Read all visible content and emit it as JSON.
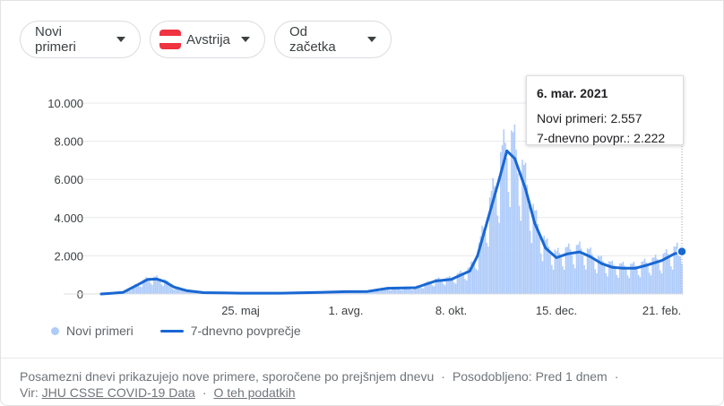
{
  "filters": {
    "metric": "Novi primeri",
    "country": "Avstrija",
    "range": "Od začetka"
  },
  "flag_colors": [
    "#ef3340",
    "#ffffff",
    "#ef3340"
  ],
  "tooltip": {
    "date": "6. mar. 2021",
    "new_cases": "Novi primeri: 2.557",
    "avg": "7-dnevno povpr.: 2.222"
  },
  "legend": {
    "bars": "Novi primeri",
    "line": "7-dnevno povprečje"
  },
  "footer": {
    "note": "Posamezni dnevi prikazujejo nove primere, sporočene po prejšnjem dnevu",
    "updated": "Posodobljeno: Pred 1 dnem",
    "source_label": "Vir:",
    "source_link": "JHU CSSE COVID-19 Data",
    "about_link": "O teh podatkih"
  },
  "chart_data": {
    "type": "bar",
    "title": "",
    "xlabel": "",
    "ylabel": "",
    "ylim": [
      0,
      10000
    ],
    "y_ticks": [
      "10.000",
      "8.000",
      "6.000",
      "4.000",
      "2.000",
      "0"
    ],
    "y_tick_values": [
      10000,
      8000,
      6000,
      4000,
      2000,
      0
    ],
    "x_ticks": [
      "25. maj",
      "1. avg.",
      "8. okt.",
      "15. dec.",
      "21. feb."
    ],
    "x_tick_dates": [
      "2020-05-25",
      "2020-08-01",
      "2020-10-08",
      "2020-12-15",
      "2021-02-21"
    ],
    "x_range": [
      "2020-02-25",
      "2021-03-06"
    ],
    "grid": "horizontal",
    "colors": {
      "bars": "#aecbfa",
      "line": "#1967d2"
    },
    "series": [
      {
        "name": "7-dnevno povprečje",
        "points": [
          [
            "2020-02-25",
            0
          ],
          [
            "2020-03-10",
            80
          ],
          [
            "2020-03-20",
            500
          ],
          [
            "2020-03-26",
            760
          ],
          [
            "2020-04-01",
            780
          ],
          [
            "2020-04-06",
            650
          ],
          [
            "2020-04-12",
            360
          ],
          [
            "2020-04-20",
            180
          ],
          [
            "2020-05-01",
            70
          ],
          [
            "2020-05-25",
            40
          ],
          [
            "2020-06-20",
            40
          ],
          [
            "2020-07-15",
            80
          ],
          [
            "2020-08-01",
            120
          ],
          [
            "2020-08-15",
            130
          ],
          [
            "2020-08-28",
            300
          ],
          [
            "2020-09-15",
            330
          ],
          [
            "2020-09-28",
            680
          ],
          [
            "2020-10-08",
            760
          ],
          [
            "2020-10-20",
            1200
          ],
          [
            "2020-10-25",
            2000
          ],
          [
            "2020-11-01",
            4000
          ],
          [
            "2020-11-08",
            6000
          ],
          [
            "2020-11-13",
            7500
          ],
          [
            "2020-11-18",
            7100
          ],
          [
            "2020-11-25",
            5500
          ],
          [
            "2020-12-01",
            3700
          ],
          [
            "2020-12-08",
            2400
          ],
          [
            "2020-12-15",
            1900
          ],
          [
            "2020-12-22",
            2100
          ],
          [
            "2020-12-30",
            2200
          ],
          [
            "2021-01-06",
            1950
          ],
          [
            "2021-01-13",
            1600
          ],
          [
            "2021-01-20",
            1400
          ],
          [
            "2021-01-27",
            1350
          ],
          [
            "2021-02-04",
            1350
          ],
          [
            "2021-02-11",
            1500
          ],
          [
            "2021-02-21",
            1750
          ],
          [
            "2021-03-01",
            2100
          ],
          [
            "2021-03-06",
            2222
          ]
        ]
      }
    ],
    "marker": {
      "date": "2021-03-06",
      "value": 2222
    }
  }
}
